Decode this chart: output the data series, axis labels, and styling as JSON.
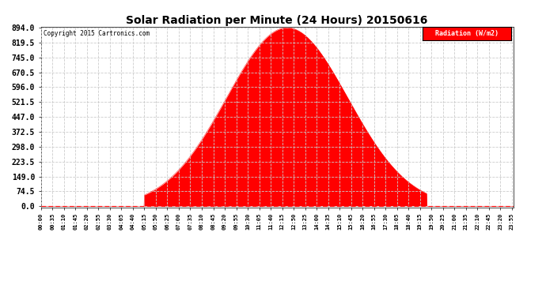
{
  "title": "Solar Radiation per Minute (24 Hours) 20150616",
  "copyright_text": "Copyright 2015 Cartronics.com",
  "legend_label": "Radiation (W/m2)",
  "background_color": "#ffffff",
  "fill_color": "#ff0000",
  "line_color": "#ff0000",
  "grid_color": "#cccccc",
  "yticks": [
    0.0,
    74.5,
    149.0,
    223.5,
    298.0,
    372.5,
    447.0,
    521.5,
    596.0,
    670.5,
    745.0,
    819.5,
    894.0
  ],
  "ymax": 894.0,
  "ymin": 0.0,
  "peak_value": 894.0,
  "peak_minute": 750,
  "sigma": 185,
  "sunrise_minute": 315,
  "sunset_minute": 1175,
  "total_minutes": 1440,
  "xtick_step": 35,
  "title_fontsize": 10,
  "ytick_fontsize": 7,
  "xtick_fontsize": 5,
  "legend_fontsize": 6
}
